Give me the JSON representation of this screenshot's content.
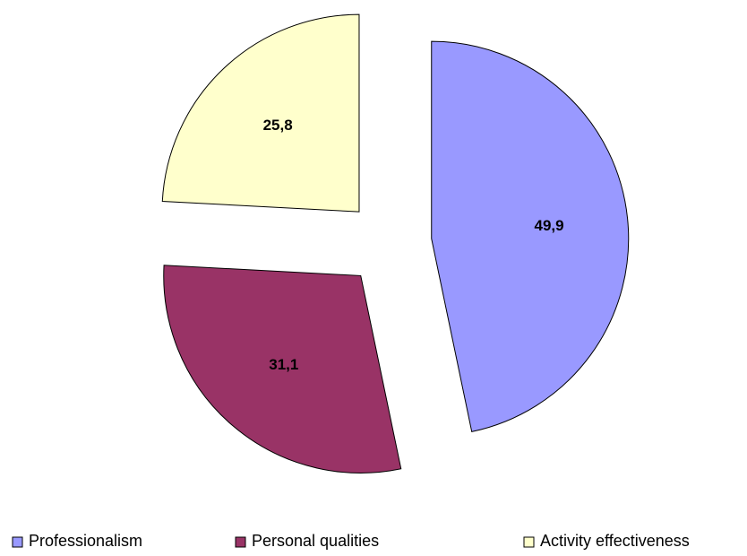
{
  "chart_data": {
    "type": "pie",
    "categories": [
      "Professionalism",
      "Personal qualities",
      "Activity effectiveness"
    ],
    "values": [
      49.9,
      31.1,
      25.8
    ],
    "value_labels": [
      "49,9",
      "31,1",
      "25,8"
    ],
    "colors": [
      "#9999ff",
      "#993366",
      "#ffffcc"
    ],
    "legend": "bottom"
  }
}
